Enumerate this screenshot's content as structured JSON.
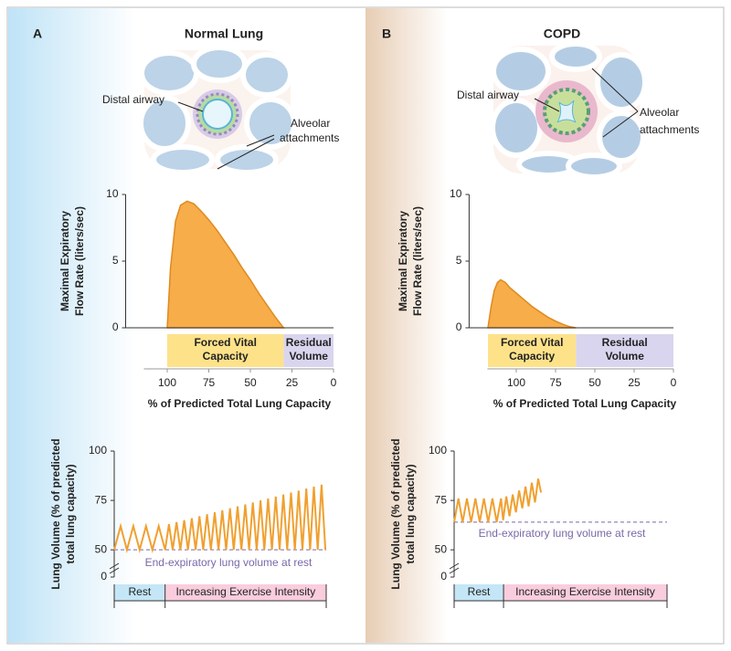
{
  "panels": [
    {
      "letter": "A",
      "title": "Normal Lung",
      "airway_label": "Distal airway",
      "attachment_label": [
        "Alveolar",
        "attachments"
      ]
    },
    {
      "letter": "B",
      "title": "COPD",
      "airway_label": "Distal airway",
      "attachment_label": [
        "Alveolar",
        "attachments"
      ]
    }
  ],
  "chart_data": [
    {
      "type": "area",
      "y_label": [
        "Maximal Expiratory",
        "Flow Rate (liters/sec)"
      ],
      "x_label": "% of Predicted Total Lung Capacity",
      "xlim": [
        125,
        0
      ],
      "xticks": [
        100,
        75,
        50,
        25,
        0
      ],
      "ylim": [
        0,
        10
      ],
      "yticks": [
        0,
        5,
        10
      ],
      "series": [
        {
          "color": "#f6ad4a",
          "x": [
            100,
            98,
            95,
            92,
            88,
            84,
            80,
            75,
            70,
            65,
            60,
            55,
            50,
            45,
            40,
            35,
            30
          ],
          "values": [
            0,
            4.5,
            8,
            9.2,
            9.5,
            9.3,
            8.8,
            8.1,
            7.3,
            6.4,
            5.5,
            4.5,
            3.6,
            2.6,
            1.7,
            0.8,
            0
          ]
        }
      ],
      "bands": [
        {
          "label": [
            "Forced Vital",
            "Capacity"
          ],
          "from": 100,
          "to": 30,
          "color": "#fde28a"
        },
        {
          "label": [
            "Residual",
            "Volume"
          ],
          "from": 30,
          "to": 0,
          "color": "#d9d5ef"
        }
      ]
    },
    {
      "type": "area",
      "y_label": [
        "Maximal Expiratory",
        "Flow Rate (liters/sec)"
      ],
      "x_label": "% of Predicted Total Lung Capacity",
      "xlim": [
        130,
        0
      ],
      "xticks": [
        100,
        75,
        50,
        25,
        0
      ],
      "ylim": [
        0,
        10
      ],
      "yticks": [
        0,
        5,
        10
      ],
      "series": [
        {
          "color": "#f6ad4a",
          "x": [
            118,
            116,
            114,
            112,
            110,
            107,
            104,
            100,
            95,
            90,
            85,
            80,
            75,
            70,
            66,
            62
          ],
          "values": [
            0,
            1.6,
            2.8,
            3.4,
            3.6,
            3.4,
            3.0,
            2.6,
            2.1,
            1.6,
            1.2,
            0.8,
            0.5,
            0.25,
            0.08,
            0
          ]
        }
      ],
      "bands": [
        {
          "label": [
            "Forced Vital",
            "Capacity"
          ],
          "from": 118,
          "to": 62,
          "color": "#fde28a"
        },
        {
          "label": [
            "Residual",
            "Volume"
          ],
          "from": 62,
          "to": 0,
          "color": "#d9d5ef"
        }
      ]
    },
    {
      "type": "line",
      "y_label": [
        "Lung Volume (% of predicted",
        "total lung capacity)"
      ],
      "ylim": [
        0,
        100
      ],
      "yticks": [
        0,
        50,
        75,
        100
      ],
      "axis_break": [
        0,
        45
      ],
      "xlim": [
        0,
        100
      ],
      "series": [
        {
          "color": "#f0a030",
          "x": [
            0,
            3,
            6,
            9,
            12,
            15,
            18,
            21,
            24,
            25.8,
            27.6,
            29.4,
            31.2,
            33.0,
            34.8,
            36.6,
            38.4,
            40.2,
            42.0,
            43.8,
            45.6,
            47.4,
            49.2,
            51.0,
            52.8,
            54.6,
            56.4,
            58.2,
            60.0,
            61.8,
            63.6,
            65.4,
            67.2,
            69.0,
            70.8,
            72.6,
            74.4,
            76.2,
            78.0,
            79.8,
            81.6,
            83.4,
            85.2,
            87.0,
            88.8,
            90.6,
            92.4,
            94.2,
            96.0,
            97.8,
            99.6
          ],
          "values": [
            50,
            62,
            50,
            62,
            50,
            62,
            50,
            62,
            50,
            63,
            50,
            64,
            50,
            65,
            50,
            66,
            50,
            67,
            50,
            68,
            50,
            69,
            50,
            70,
            50,
            71,
            50,
            72,
            50,
            73,
            50,
            74,
            50,
            75,
            50,
            76,
            50,
            77,
            50,
            78,
            50,
            79,
            50,
            80,
            50,
            81,
            50,
            82,
            50,
            83,
            50
          ]
        }
      ],
      "reference": {
        "value": 50,
        "label": "End-expiratory lung volume at rest",
        "color": "#7a68a8"
      },
      "bands": [
        {
          "label": "Rest",
          "from": 0,
          "to": 24,
          "color": "#c4e6f7"
        },
        {
          "label": "Increasing Exercise Intensity",
          "from": 24,
          "to": 100,
          "color": "#f9cddd"
        }
      ]
    },
    {
      "type": "line",
      "y_label": [
        "Lung Volume (% of predicted",
        "total lung capacity)"
      ],
      "ylim": [
        0,
        100
      ],
      "yticks": [
        0,
        50,
        75,
        100
      ],
      "axis_break": [
        0,
        45
      ],
      "xlim": [
        0,
        100
      ],
      "series": [
        {
          "color": "#f0a030",
          "x": [
            0,
            2,
            4,
            6,
            8,
            10,
            12,
            14,
            16,
            18,
            20,
            22,
            23,
            24.5,
            26,
            27.5,
            29,
            30.5,
            32,
            33.5,
            35,
            36.5,
            38,
            39.5,
            40.8
          ],
          "values": [
            64,
            76,
            64,
            76,
            64,
            76,
            64,
            76,
            64,
            76,
            64,
            76,
            65,
            77,
            67,
            78,
            69,
            80,
            71,
            82,
            72,
            84,
            74,
            86,
            79
          ]
        }
      ],
      "reference": {
        "value": 64,
        "label": "End-expiratory lung volume at rest",
        "color": "#7a68a8"
      },
      "bands": [
        {
          "label": "Rest",
          "from": 0,
          "to": 23.2,
          "color": "#c4e6f7"
        },
        {
          "label": "Increasing Exercise Intensity",
          "from": 23.2,
          "to": 100,
          "color": "#f9cddd"
        }
      ]
    }
  ]
}
